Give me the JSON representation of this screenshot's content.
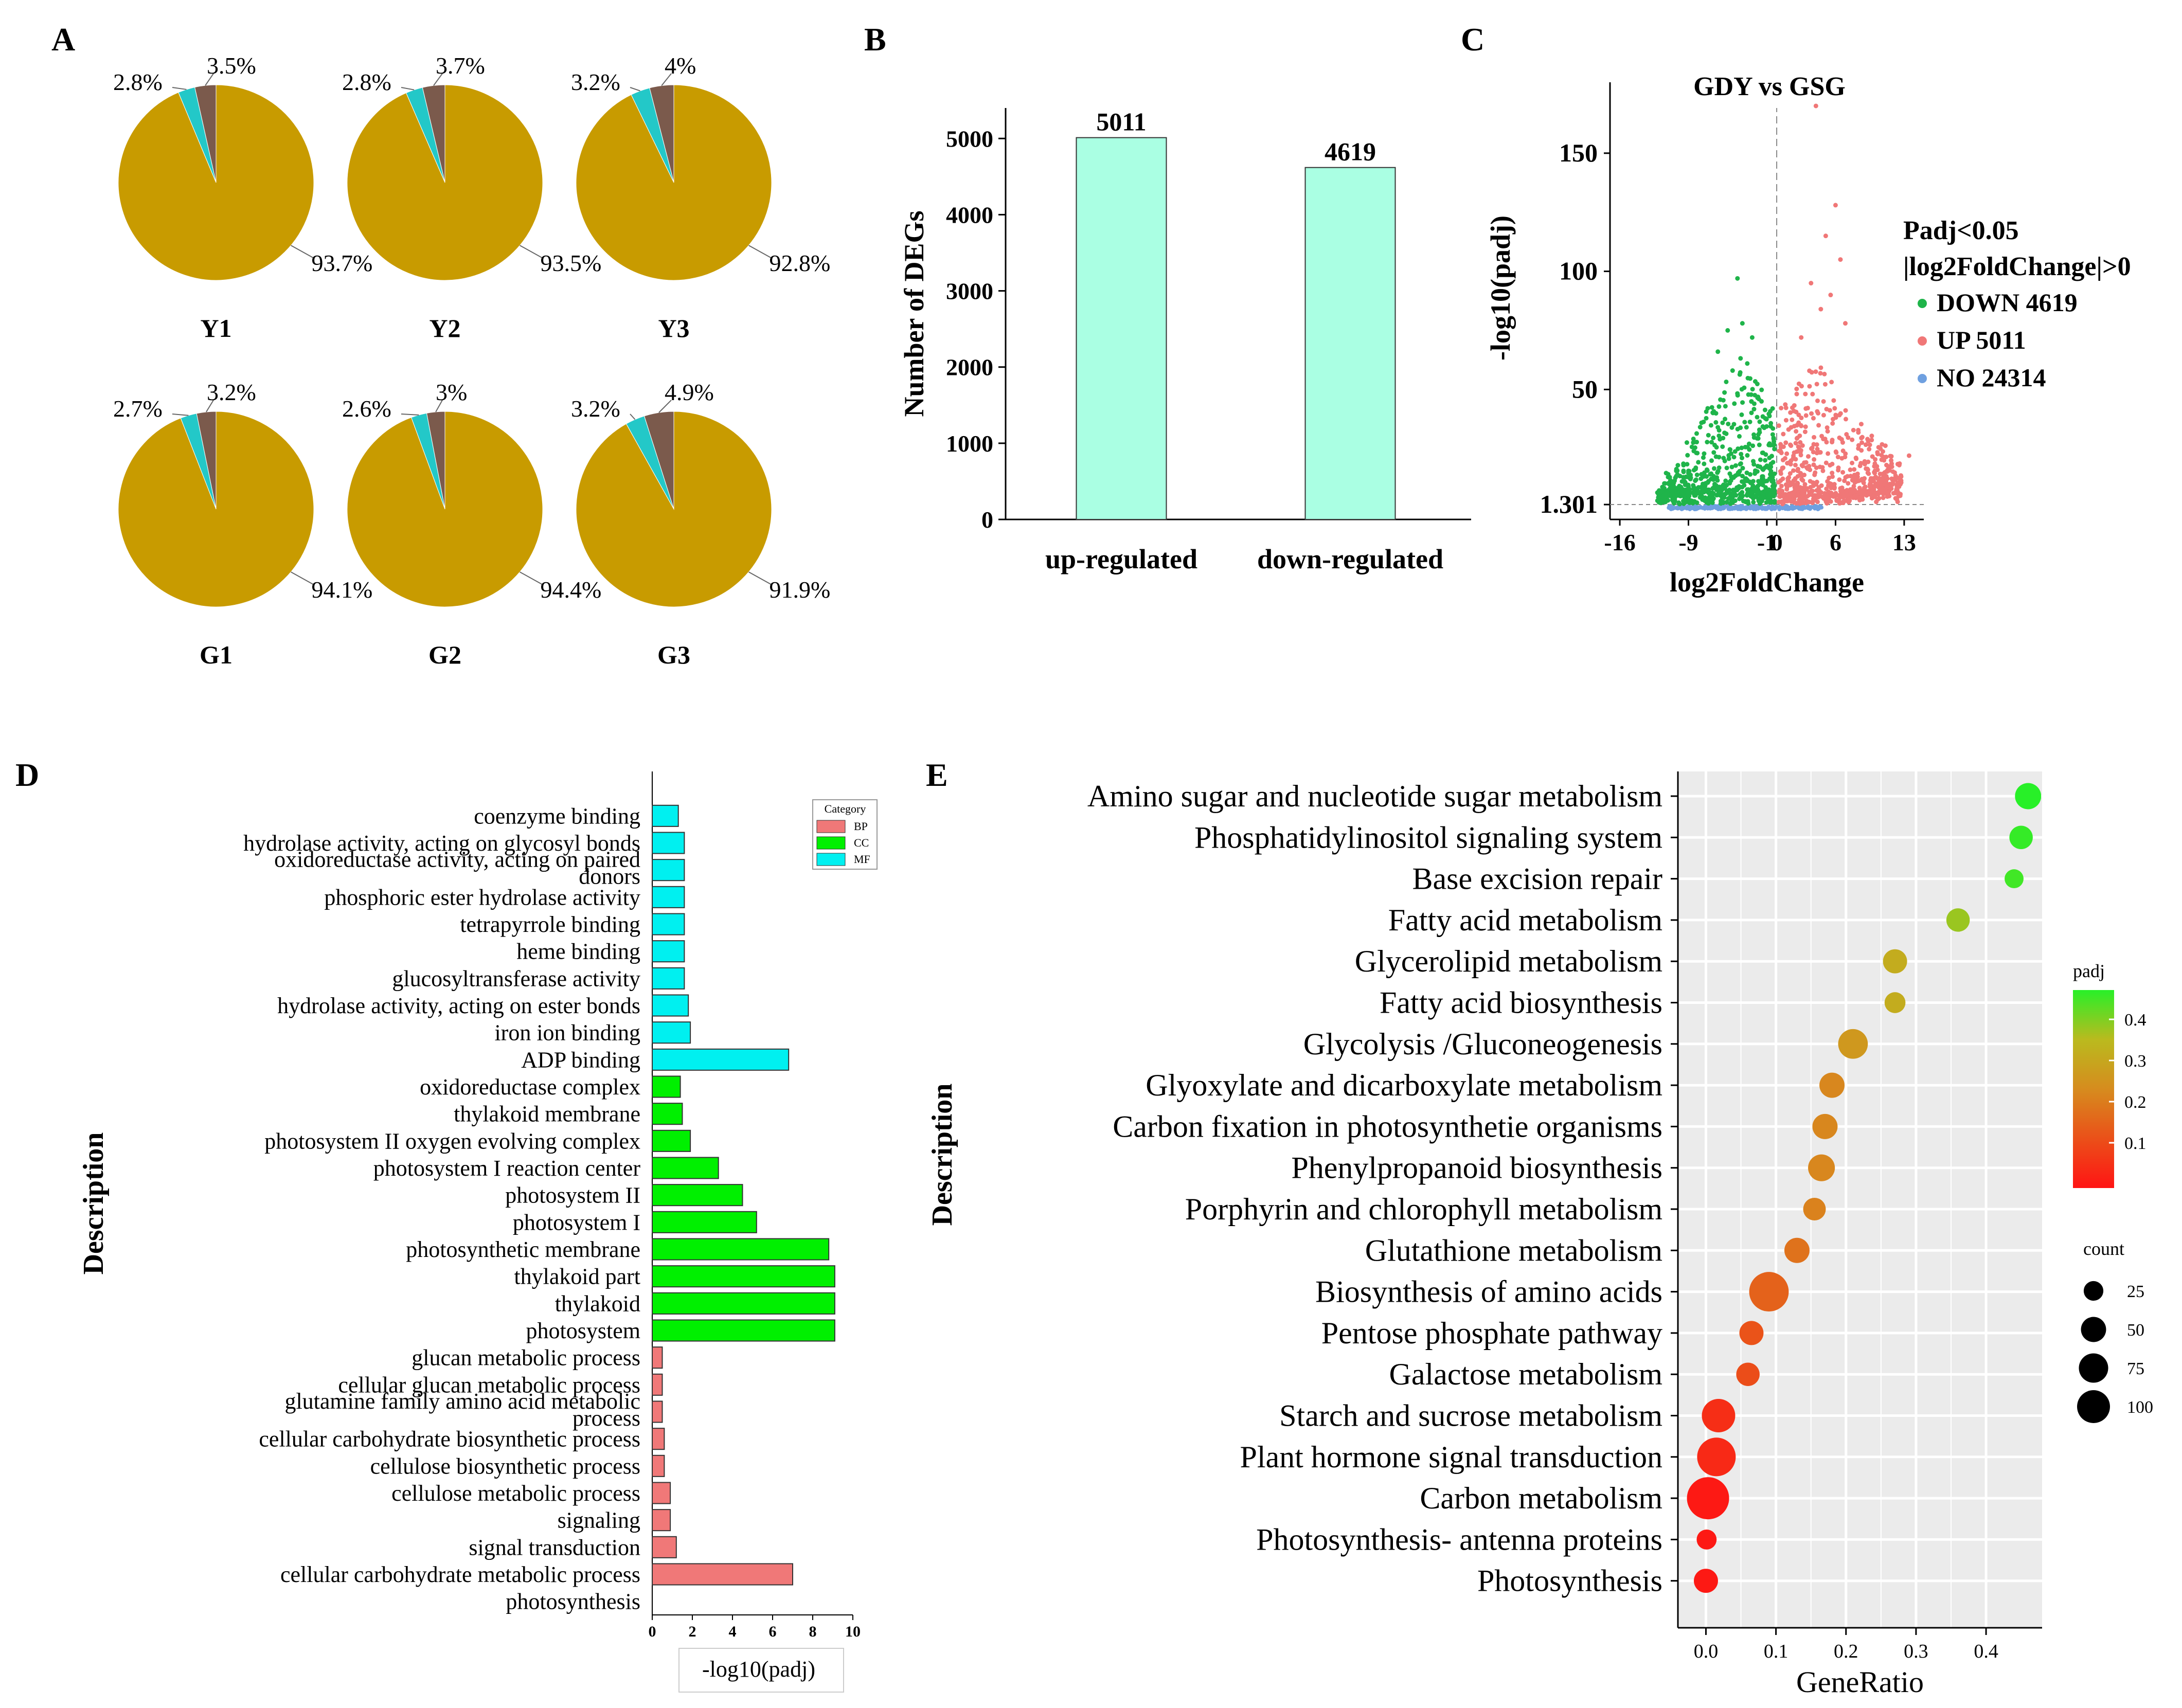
{
  "panels": {
    "a": "A",
    "b": "B",
    "c": "C",
    "d": "D",
    "e": "E"
  },
  "colors": {
    "pie_main": "#c89b00",
    "pie_cyan": "#23c8c8",
    "pie_brown": "#7b5a4c",
    "bar_up": "#aaffe3",
    "volcano_down": "#1fb44a",
    "volcano_up": "#f07777",
    "volcano_no": "#6fa0e0",
    "go_bp": "#f07878",
    "go_cc": "#00f000",
    "go_mf": "#00f0f0"
  },
  "chart_data": [
    {
      "type": "pie",
      "panel": "A",
      "charts": [
        {
          "name": "Y1",
          "slices": [
            {
              "value": 93.7,
              "label": "93.7%",
              "color": "#c89b00"
            },
            {
              "value": 2.8,
              "label": "2.8%",
              "color": "#23c8c8"
            },
            {
              "value": 3.5,
              "label": "3.5%",
              "color": "#7b5a4c"
            }
          ]
        },
        {
          "name": "Y2",
          "slices": [
            {
              "value": 93.5,
              "label": "93.5%",
              "color": "#c89b00"
            },
            {
              "value": 2.8,
              "label": "2.8%",
              "color": "#23c8c8"
            },
            {
              "value": 3.7,
              "label": "3.7%",
              "color": "#7b5a4c"
            }
          ]
        },
        {
          "name": "Y3",
          "slices": [
            {
              "value": 92.8,
              "label": "92.8%",
              "color": "#c89b00"
            },
            {
              "value": 3.2,
              "label": "3.2%",
              "color": "#23c8c8"
            },
            {
              "value": 4,
              "label": "4%",
              "color": "#7b5a4c"
            }
          ]
        },
        {
          "name": "G1",
          "slices": [
            {
              "value": 94.1,
              "label": "94.1%",
              "color": "#c89b00"
            },
            {
              "value": 2.7,
              "label": "2.7%",
              "color": "#23c8c8"
            },
            {
              "value": 3.2,
              "label": "3.2%",
              "color": "#7b5a4c"
            }
          ]
        },
        {
          "name": "G2",
          "slices": [
            {
              "value": 94.4,
              "label": "94.4%",
              "color": "#c89b00"
            },
            {
              "value": 2.6,
              "label": "2.6%",
              "color": "#23c8c8"
            },
            {
              "value": 3,
              "label": "3%",
              "color": "#7b5a4c"
            }
          ]
        },
        {
          "name": "G3",
          "slices": [
            {
              "value": 91.9,
              "label": "91.9%",
              "color": "#c89b00"
            },
            {
              "value": 3.2,
              "label": "3.2%",
              "color": "#23c8c8"
            },
            {
              "value": 4.9,
              "label": "4.9%",
              "color": "#7b5a4c"
            }
          ]
        }
      ]
    },
    {
      "type": "bar",
      "panel": "B",
      "categories": [
        "up-regulated",
        "down-regulated"
      ],
      "values": [
        5011,
        4619
      ],
      "value_labels": [
        "5011",
        "4619"
      ],
      "ylabel": "Number of  DEGs",
      "ylim": [
        0,
        5400
      ],
      "yticks": [
        0,
        1000,
        2000,
        3000,
        4000,
        5000
      ],
      "ytick_labels": [
        "0",
        "1000",
        "2000",
        "3000",
        "4000",
        "5000"
      ]
    },
    {
      "type": "scatter",
      "panel": "C",
      "title": "GDY vs GSG",
      "xlabel": "log2FoldChange",
      "ylabel": "-log10(padj)",
      "xlim": [
        -17,
        15
      ],
      "ylim": [
        -5,
        180
      ],
      "xticks": [
        -16,
        -9,
        -1,
        0,
        6,
        13
      ],
      "xtick_labels": [
        "-16",
        "-9",
        "-1",
        "0",
        "6",
        "13"
      ],
      "yticks": [
        1.301,
        50,
        100,
        150
      ],
      "ytick_labels": [
        "1.301",
        "50",
        "100",
        "150"
      ],
      "threshold_y": 1.301,
      "threshold_x": 0,
      "legend_title": [
        "Padj<0.05",
        "|log2FoldChange|>0"
      ],
      "series": [
        {
          "name": "DOWN 4619",
          "color": "#1fb44a",
          "count": 4619
        },
        {
          "name": "UP 5011",
          "color": "#f07777",
          "count": 5011
        },
        {
          "name": "NO 24314",
          "color": "#6fa0e0",
          "count": 24314
        }
      ]
    },
    {
      "type": "bar",
      "orientation": "horizontal",
      "panel": "D",
      "xlabel": "-log10(padj)",
      "ylabel": "Description",
      "xlim": [
        0,
        10
      ],
      "xticks": [
        0,
        2,
        4,
        6,
        8,
        10
      ],
      "xtick_labels": [
        "0",
        "2",
        "4",
        "6",
        "8",
        "10"
      ],
      "legend_title": "Category",
      "legend": [
        {
          "name": "BP",
          "color": "#f07878"
        },
        {
          "name": "CC",
          "color": "#00f000"
        },
        {
          "name": "MF",
          "color": "#00f0f0"
        }
      ],
      "categories": [
        {
          "label": "coenzyme binding",
          "value": 1.3,
          "cat": "MF"
        },
        {
          "label": "hydrolase activity, acting on glycosyl bonds",
          "value": 1.6,
          "cat": "MF"
        },
        {
          "label": "oxidoreductase activity, acting on paired\ndonors",
          "value": 1.6,
          "cat": "MF"
        },
        {
          "label": "phosphoric ester hydrolase activity",
          "value": 1.6,
          "cat": "MF"
        },
        {
          "label": "tetrapyrrole binding",
          "value": 1.6,
          "cat": "MF"
        },
        {
          "label": "heme binding",
          "value": 1.6,
          "cat": "MF"
        },
        {
          "label": "glucosyltransferase activity",
          "value": 1.6,
          "cat": "MF"
        },
        {
          "label": "hydrolase activity, acting on ester bonds",
          "value": 1.8,
          "cat": "MF"
        },
        {
          "label": "iron ion binding",
          "value": 1.9,
          "cat": "MF"
        },
        {
          "label": "ADP binding",
          "value": 6.8,
          "cat": "MF"
        },
        {
          "label": "oxidoreductase complex",
          "value": 1.4,
          "cat": "CC"
        },
        {
          "label": "thylakoid membrane",
          "value": 1.5,
          "cat": "CC"
        },
        {
          "label": "photosystem II oxygen evolving complex",
          "value": 1.9,
          "cat": "CC"
        },
        {
          "label": "photosystem I reaction center",
          "value": 3.3,
          "cat": "CC"
        },
        {
          "label": "photosystem II",
          "value": 4.5,
          "cat": "CC"
        },
        {
          "label": "photosystem I",
          "value": 5.2,
          "cat": "CC"
        },
        {
          "label": "photosynthetic membrane",
          "value": 8.8,
          "cat": "CC"
        },
        {
          "label": "thylakoid part",
          "value": 9.1,
          "cat": "CC"
        },
        {
          "label": "thylakoid",
          "value": 9.1,
          "cat": "CC"
        },
        {
          "label": "photosystem",
          "value": 9.1,
          "cat": "CC"
        },
        {
          "label": "glucan metabolic process",
          "value": 0.5,
          "cat": "BP"
        },
        {
          "label": "cellular glucan metabolic process",
          "value": 0.5,
          "cat": "BP"
        },
        {
          "label": "glutamine family amino acid metabolic\nprocess",
          "value": 0.5,
          "cat": "BP"
        },
        {
          "label": "cellular carbohydrate biosynthetic process",
          "value": 0.6,
          "cat": "BP"
        },
        {
          "label": "cellulose biosynthetic process",
          "value": 0.6,
          "cat": "BP"
        },
        {
          "label": "cellulose metabolic process",
          "value": 0.9,
          "cat": "BP"
        },
        {
          "label": "signaling",
          "value": 0.9,
          "cat": "BP"
        },
        {
          "label": "signal transduction",
          "value": 1.2,
          "cat": "BP"
        },
        {
          "label": "cellular carbohydrate metabolic process",
          "value": 7.0,
          "cat": "BP"
        },
        {
          "label": "photosynthesis",
          "value": 0,
          "cat": "BP"
        }
      ]
    },
    {
      "type": "scatter",
      "subtype": "bubble",
      "panel": "E",
      "xlabel": "GeneRatio",
      "ylabel": "Description",
      "xlim": [
        -0.04,
        0.48
      ],
      "xticks": [
        0,
        0.1,
        0.2,
        0.3,
        0.4
      ],
      "xtick_labels": [
        "0.0",
        "0.1",
        "0.2",
        "0.3",
        "0.4"
      ],
      "color_legend_title": "padj",
      "color_ticks": [
        "0.4",
        "0.3",
        "0.2",
        "0.1"
      ],
      "size_legend_title": "count",
      "size_legend": [
        {
          "count": 25,
          "label": "25"
        },
        {
          "count": 50,
          "label": "50"
        },
        {
          "count": 75,
          "label": "75"
        },
        {
          "count": 100,
          "label": "100"
        }
      ],
      "points": [
        {
          "label": "Amino sugar and nucleotide sugar metabolism",
          "ratio": 0.46,
          "padj": 0.46,
          "count": 28
        },
        {
          "label": "Phosphatidylinositol signaling system",
          "ratio": 0.45,
          "padj": 0.45,
          "count": 20
        },
        {
          "label": "Base excision repair",
          "ratio": 0.44,
          "padj": 0.44,
          "count": 10
        },
        {
          "label": "Fatty acid metabolism",
          "ratio": 0.36,
          "padj": 0.37,
          "count": 20
        },
        {
          "label": "Glycerolipid metabolism",
          "ratio": 0.27,
          "padj": 0.31,
          "count": 22
        },
        {
          "label": "Fatty acid biosynthesis",
          "ratio": 0.27,
          "padj": 0.31,
          "count": 14
        },
        {
          "label": "Glycolysis /Gluconeogenesis",
          "ratio": 0.21,
          "padj": 0.26,
          "count": 40
        },
        {
          "label": "Glyoxylate and dicarboxylate metabolism",
          "ratio": 0.18,
          "padj": 0.22,
          "count": 25
        },
        {
          "label": "Carbon fixation in photosynthetie organisms",
          "ratio": 0.17,
          "padj": 0.22,
          "count": 25
        },
        {
          "label": "Phenylpropanoid biosynthesis",
          "ratio": 0.165,
          "padj": 0.22,
          "count": 30
        },
        {
          "label": "Porphyrin and chlorophyll metabolism",
          "ratio": 0.155,
          "padj": 0.21,
          "count": 18
        },
        {
          "label": "Glutathione metabolism",
          "ratio": 0.13,
          "padj": 0.18,
          "count": 25
        },
        {
          "label": "Biosynthesis of amino acids",
          "ratio": 0.09,
          "padj": 0.15,
          "count": 85
        },
        {
          "label": "Pentose phosphate pathway",
          "ratio": 0.065,
          "padj": 0.12,
          "count": 22
        },
        {
          "label": "Galactose metabolism",
          "ratio": 0.06,
          "padj": 0.11,
          "count": 20
        },
        {
          "label": "Starch and sucrose metabolism",
          "ratio": 0.018,
          "padj": 0.05,
          "count": 55
        },
        {
          "label": "Plant hormone signal transduction",
          "ratio": 0.015,
          "padj": 0.04,
          "count": 80
        },
        {
          "label": "Carbon metabolism",
          "ratio": 0.003,
          "padj": 0.01,
          "count": 100
        },
        {
          "label": "Photosynthesis- antenna proteins",
          "ratio": 0.001,
          "padj": 0.01,
          "count": 12
        },
        {
          "label": "Photosynthesis",
          "ratio": 0.0,
          "padj": 0.01,
          "count": 22
        }
      ]
    }
  ]
}
